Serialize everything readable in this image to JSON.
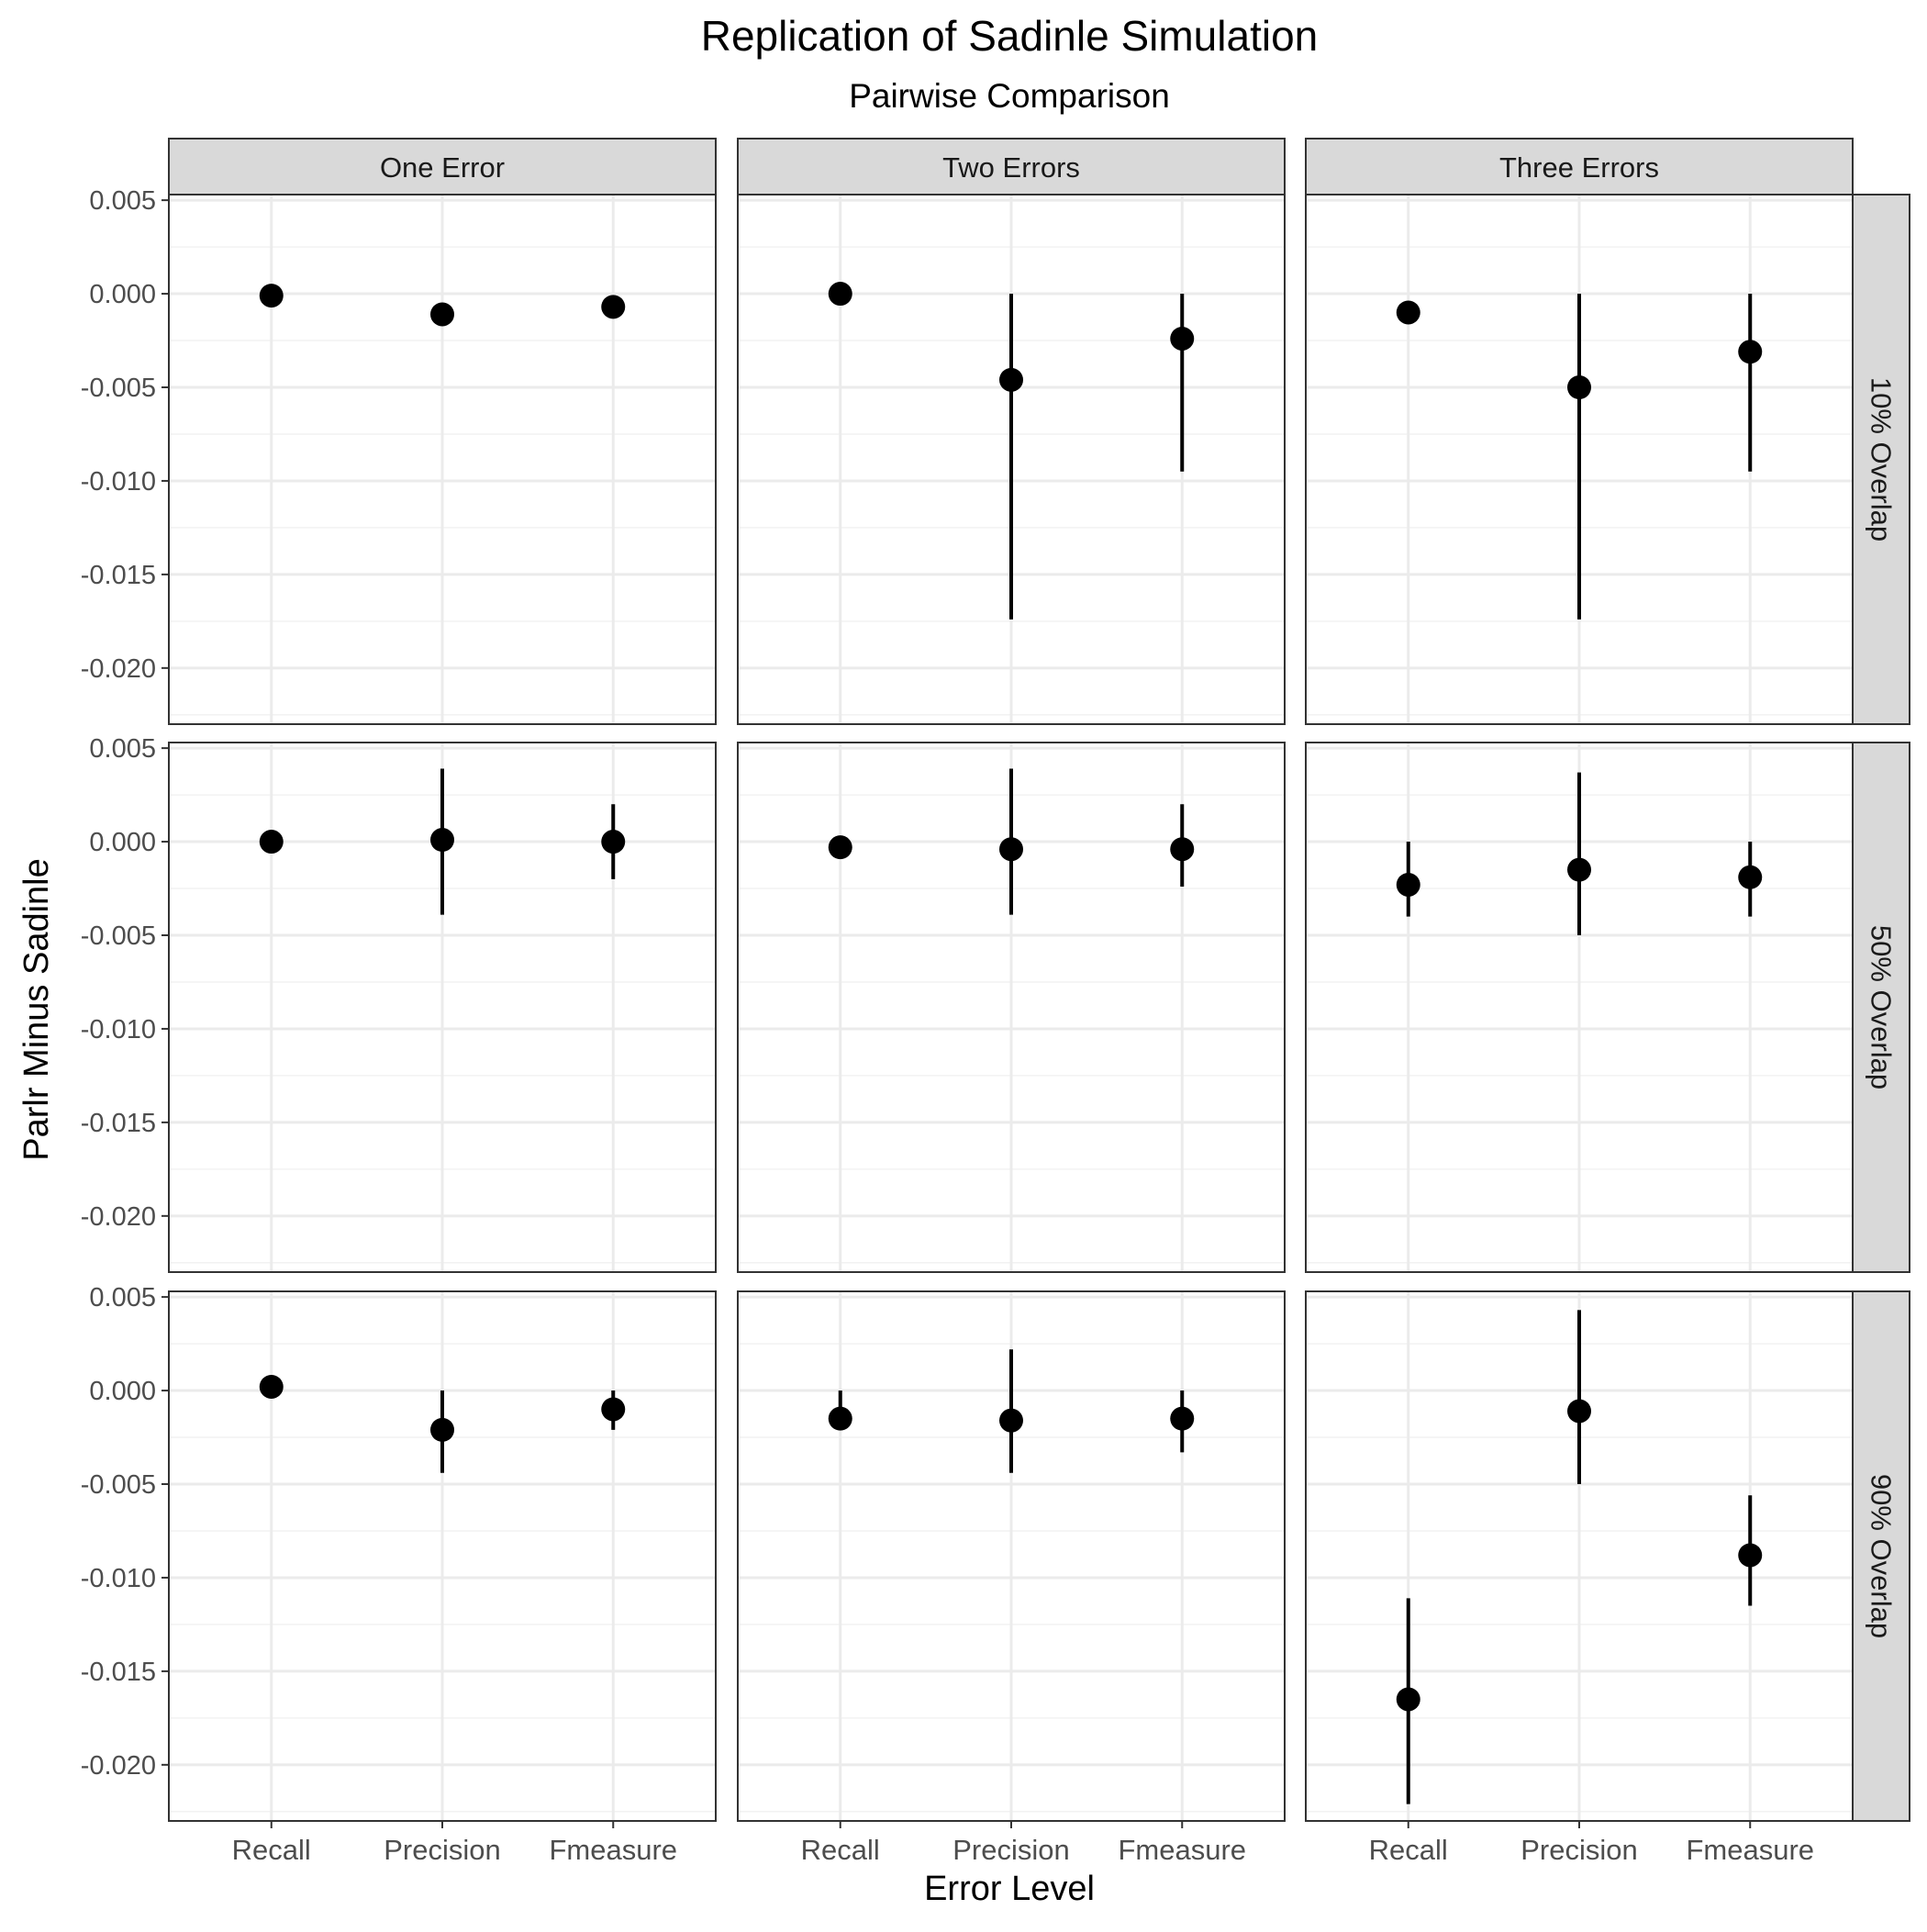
{
  "chart_data": {
    "type": "pointrange",
    "title": "Replication of Sadinle Simulation",
    "subtitle": "Pairwise Comparison",
    "xlabel": "Error Level",
    "ylabel": "Parlr Minus Sadinle",
    "columns": [
      "One Error",
      "Two Errors",
      "Three Errors"
    ],
    "rows": [
      "10% Overlap",
      "50% Overlap",
      "90% Overlap"
    ],
    "categories": [
      "Recall",
      "Precision",
      "Fmeasure"
    ],
    "ylim": [
      -0.023,
      0.0053
    ],
    "yticks": [
      0.005,
      0.0,
      -0.005,
      -0.01,
      -0.015,
      -0.02
    ],
    "ytick_labels": [
      "0.005",
      "0.000",
      "-0.005",
      "-0.010",
      "-0.015",
      "-0.020"
    ],
    "grid": true,
    "theme": "bw",
    "point_color": "#000000",
    "strip_fill": "#d9d9d9",
    "panels": [
      {
        "row": "10% Overlap",
        "column": "One Error",
        "points": [
          {
            "category": "Recall",
            "y": -0.0001,
            "ymin": -0.0001,
            "ymax": -0.0001
          },
          {
            "category": "Precision",
            "y": -0.0011,
            "ymin": -0.0011,
            "ymax": -0.0011
          },
          {
            "category": "Fmeasure",
            "y": -0.0007,
            "ymin": -0.0007,
            "ymax": -0.0007
          }
        ]
      },
      {
        "row": "10% Overlap",
        "column": "Two Errors",
        "points": [
          {
            "category": "Recall",
            "y": 0.0,
            "ymin": 0.0,
            "ymax": 0.0
          },
          {
            "category": "Precision",
            "y": -0.0046,
            "ymin": -0.0174,
            "ymax": 0.0
          },
          {
            "category": "Fmeasure",
            "y": -0.0024,
            "ymin": -0.0095,
            "ymax": 0.0
          }
        ]
      },
      {
        "row": "10% Overlap",
        "column": "Three Errors",
        "points": [
          {
            "category": "Recall",
            "y": -0.001,
            "ymin": -0.001,
            "ymax": -0.001
          },
          {
            "category": "Precision",
            "y": -0.005,
            "ymin": -0.0174,
            "ymax": 0.0
          },
          {
            "category": "Fmeasure",
            "y": -0.0031,
            "ymin": -0.0095,
            "ymax": 0.0
          }
        ]
      },
      {
        "row": "50% Overlap",
        "column": "One Error",
        "points": [
          {
            "category": "Recall",
            "y": 0.0,
            "ymin": 0.0,
            "ymax": 0.0
          },
          {
            "category": "Precision",
            "y": 0.0001,
            "ymin": -0.0039,
            "ymax": 0.0039
          },
          {
            "category": "Fmeasure",
            "y": 0.0,
            "ymin": -0.002,
            "ymax": 0.002
          }
        ]
      },
      {
        "row": "50% Overlap",
        "column": "Two Errors",
        "points": [
          {
            "category": "Recall",
            "y": -0.0003,
            "ymin": -0.0003,
            "ymax": -0.0003
          },
          {
            "category": "Precision",
            "y": -0.0004,
            "ymin": -0.0039,
            "ymax": 0.0039
          },
          {
            "category": "Fmeasure",
            "y": -0.0004,
            "ymin": -0.0024,
            "ymax": 0.002
          }
        ]
      },
      {
        "row": "50% Overlap",
        "column": "Three Errors",
        "points": [
          {
            "category": "Recall",
            "y": -0.0023,
            "ymin": -0.004,
            "ymax": 0.0
          },
          {
            "category": "Precision",
            "y": -0.0015,
            "ymin": -0.005,
            "ymax": 0.0037
          },
          {
            "category": "Fmeasure",
            "y": -0.0019,
            "ymin": -0.004,
            "ymax": 0.0
          }
        ]
      },
      {
        "row": "90% Overlap",
        "column": "One Error",
        "points": [
          {
            "category": "Recall",
            "y": 0.0002,
            "ymin": 0.0002,
            "ymax": 0.0002
          },
          {
            "category": "Precision",
            "y": -0.0021,
            "ymin": -0.0044,
            "ymax": 0.0
          },
          {
            "category": "Fmeasure",
            "y": -0.001,
            "ymin": -0.0021,
            "ymax": 0.0
          }
        ]
      },
      {
        "row": "90% Overlap",
        "column": "Two Errors",
        "points": [
          {
            "category": "Recall",
            "y": -0.0015,
            "ymin": -0.0015,
            "ymax": 0.0
          },
          {
            "category": "Precision",
            "y": -0.0016,
            "ymin": -0.0044,
            "ymax": 0.0022
          },
          {
            "category": "Fmeasure",
            "y": -0.0015,
            "ymin": -0.0033,
            "ymax": 0.0
          }
        ]
      },
      {
        "row": "90% Overlap",
        "column": "Three Errors",
        "points": [
          {
            "category": "Recall",
            "y": -0.0165,
            "ymin": -0.0221,
            "ymax": -0.0111
          },
          {
            "category": "Precision",
            "y": -0.0011,
            "ymin": -0.005,
            "ymax": 0.0043
          },
          {
            "category": "Fmeasure",
            "y": -0.0088,
            "ymin": -0.0115,
            "ymax": -0.0056
          }
        ]
      }
    ]
  }
}
